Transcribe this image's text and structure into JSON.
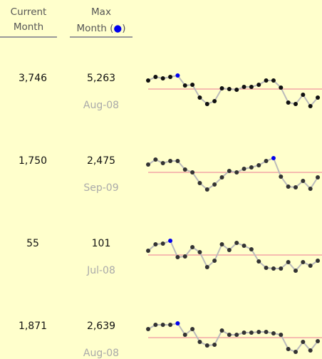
{
  "header": {
    "current": [
      "Current",
      "Month"
    ],
    "max": {
      "line1": "Max",
      "line2": [
        "Month (",
        "●",
        ")"
      ]
    }
  },
  "spark_scale": [
    0,
    50
  ],
  "rows": [
    {
      "current": "3,746",
      "max": "5,263",
      "max_date": "Aug-08",
      "reference": 30,
      "max_index": 4,
      "values": [
        42,
        47,
        45,
        47,
        49,
        35,
        36,
        18,
        9,
        13,
        31,
        30,
        29,
        33,
        33,
        36,
        42,
        42,
        32,
        11,
        9,
        22,
        6,
        18
      ]
    },
    {
      "current": "1,750",
      "max": "2,475",
      "max_date": "Sep-09",
      "reference": 29,
      "max_index": 17,
      "values": [
        40,
        47,
        42,
        45,
        45,
        33,
        29,
        14,
        5,
        12,
        22,
        31,
        29,
        34,
        36,
        39,
        45,
        49,
        23,
        9,
        8,
        17,
        6,
        22
      ]
    },
    {
      "current": "55",
      "max": "101",
      "max_date": "Jul-08",
      "reference": 29,
      "max_index": 3,
      "values": [
        35,
        44,
        45,
        49,
        26,
        27,
        40,
        33,
        12,
        21,
        44,
        36,
        46,
        42,
        37,
        20,
        11,
        10,
        10,
        19,
        7,
        19,
        14,
        21
      ]
    },
    {
      "current": "1,871",
      "max": "2,639",
      "max_date": "Aug-08",
      "reference": 29,
      "max_index": 4,
      "values": [
        41,
        47,
        47,
        47,
        49,
        33,
        41,
        23,
        18,
        19,
        39,
        33,
        33,
        36,
        36,
        37,
        37,
        35,
        33,
        13,
        9,
        23,
        11,
        24
      ]
    }
  ]
}
